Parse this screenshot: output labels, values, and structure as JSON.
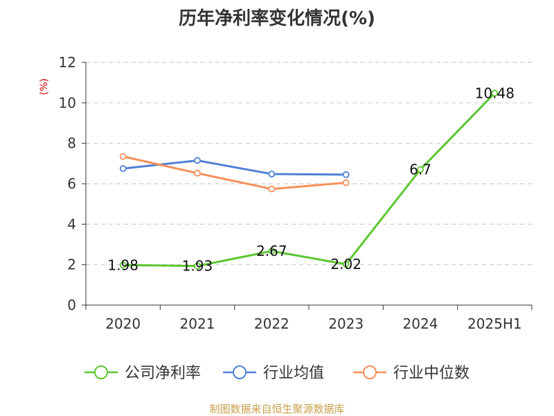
{
  "chart_data": {
    "type": "line",
    "title": "历年净利率变化情况(%)",
    "ylabel": "(%)",
    "ylim": [
      0,
      12
    ],
    "yticks": [
      0,
      2,
      4,
      6,
      8,
      10,
      12
    ],
    "categories": [
      "2020",
      "2021",
      "2022",
      "2023",
      "2024",
      "2025H1"
    ],
    "grid": true,
    "legend_position": "bottom",
    "series": [
      {
        "name": "公司净利率",
        "color": "#5cc630",
        "values": [
          1.98,
          1.93,
          2.67,
          2.02,
          6.7,
          10.48
        ],
        "labels": [
          "1.98",
          "1.93",
          "2.67",
          "2.02",
          "6.7",
          "10.48"
        ]
      },
      {
        "name": "行业均值",
        "color": "#4f81d6",
        "values": [
          6.75,
          7.15,
          6.48,
          6.45,
          null,
          null
        ]
      },
      {
        "name": "行业中位数",
        "color": "#f5905a",
        "values": [
          7.35,
          6.52,
          5.74,
          6.05,
          null,
          null
        ]
      }
    ],
    "source": "制图数据来自恒生聚源数据库",
    "colors": {
      "axis": "#333333",
      "grid": "#cccccc",
      "ylabel": "#cc0000",
      "source": "#c8a04a"
    }
  }
}
